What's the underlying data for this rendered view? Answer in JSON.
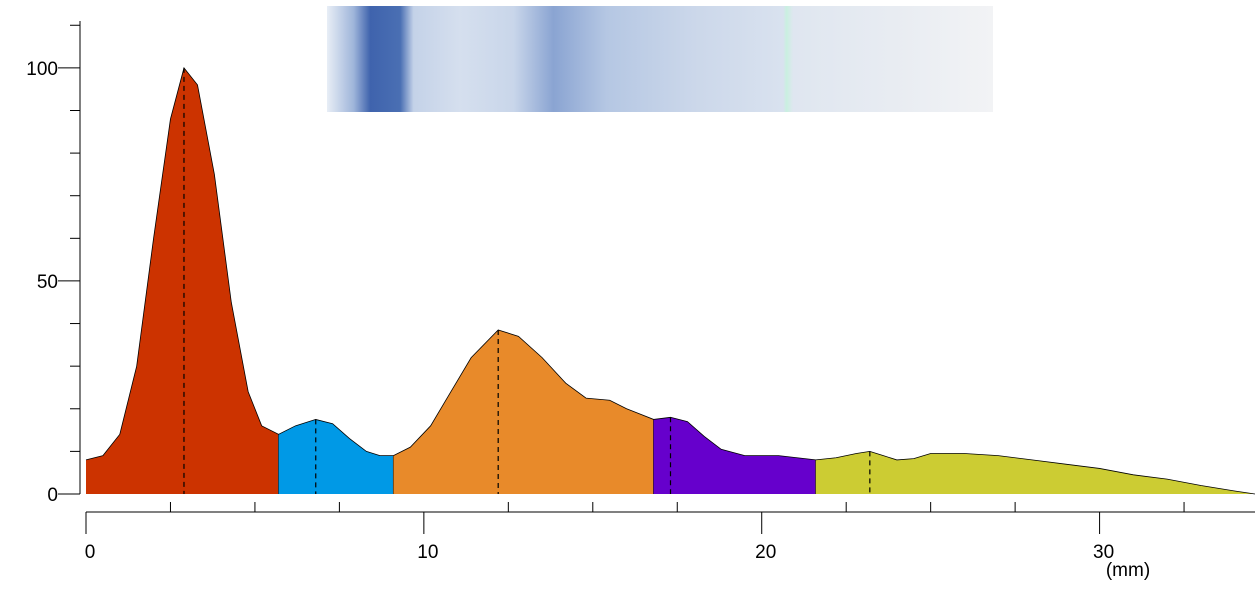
{
  "chart_data": {
    "type": "area",
    "x_label": "(mm)",
    "x": [
      0,
      0.5,
      1,
      1.5,
      2,
      2.5,
      2.9,
      3.3,
      3.8,
      4.3,
      4.8,
      5.2,
      5.7,
      6.2,
      6.8,
      7.3,
      7.8,
      8.3,
      8.7,
      9.1,
      9.6,
      10.2,
      10.8,
      11.4,
      12.2,
      12.8,
      13.5,
      14.2,
      14.8,
      15.5,
      16.0,
      16.8,
      17.3,
      17.8,
      18.3,
      18.8,
      19.5,
      20.5,
      21.6,
      22.2,
      22.8,
      23.2,
      23.6,
      24.0,
      24.5,
      25.0,
      26.0,
      27.0,
      28.0,
      29.0,
      30.0,
      31.0,
      32.0,
      33.0,
      34.0,
      34.6
    ],
    "values": [
      8,
      9,
      14,
      30,
      60,
      88,
      100,
      96,
      75,
      45,
      24,
      16,
      14,
      16,
      17.5,
      16.5,
      13,
      10,
      9,
      9,
      11,
      16,
      24,
      32,
      38.5,
      37,
      32,
      26,
      22.5,
      22,
      20,
      17.5,
      18,
      17,
      13.5,
      10.5,
      9,
      9,
      8,
      8.5,
      9.5,
      10,
      9,
      8,
      8.3,
      9.5,
      9.5,
      9,
      8,
      7,
      6,
      4.5,
      3.5,
      2,
      0.7,
      0
    ],
    "segments": [
      {
        "start": 0,
        "end": 5.7,
        "color": "#cc3300"
      },
      {
        "start": 5.7,
        "end": 9.1,
        "color": "#0099e6"
      },
      {
        "start": 9.1,
        "end": 16.8,
        "color": "#e88a2a"
      },
      {
        "start": 16.8,
        "end": 21.6,
        "color": "#6600cc"
      },
      {
        "start": 21.6,
        "end": 34.6,
        "color": "#cccc33"
      }
    ],
    "peaks": [
      2.9,
      6.8,
      12.2,
      17.3,
      23.2
    ],
    "xlim": [
      0,
      34.6
    ],
    "ylim": [
      0,
      111
    ],
    "xticks": [
      0,
      10,
      20,
      30
    ],
    "xminor_ticks": [
      2.5,
      5,
      7.5,
      12.5,
      15,
      17.5,
      22.5,
      25,
      27.5,
      32.5
    ],
    "yticks": [
      0,
      50,
      100
    ],
    "yminor_ticks": [
      10,
      20,
      30,
      40,
      60,
      70,
      80,
      90,
      110
    ]
  }
}
